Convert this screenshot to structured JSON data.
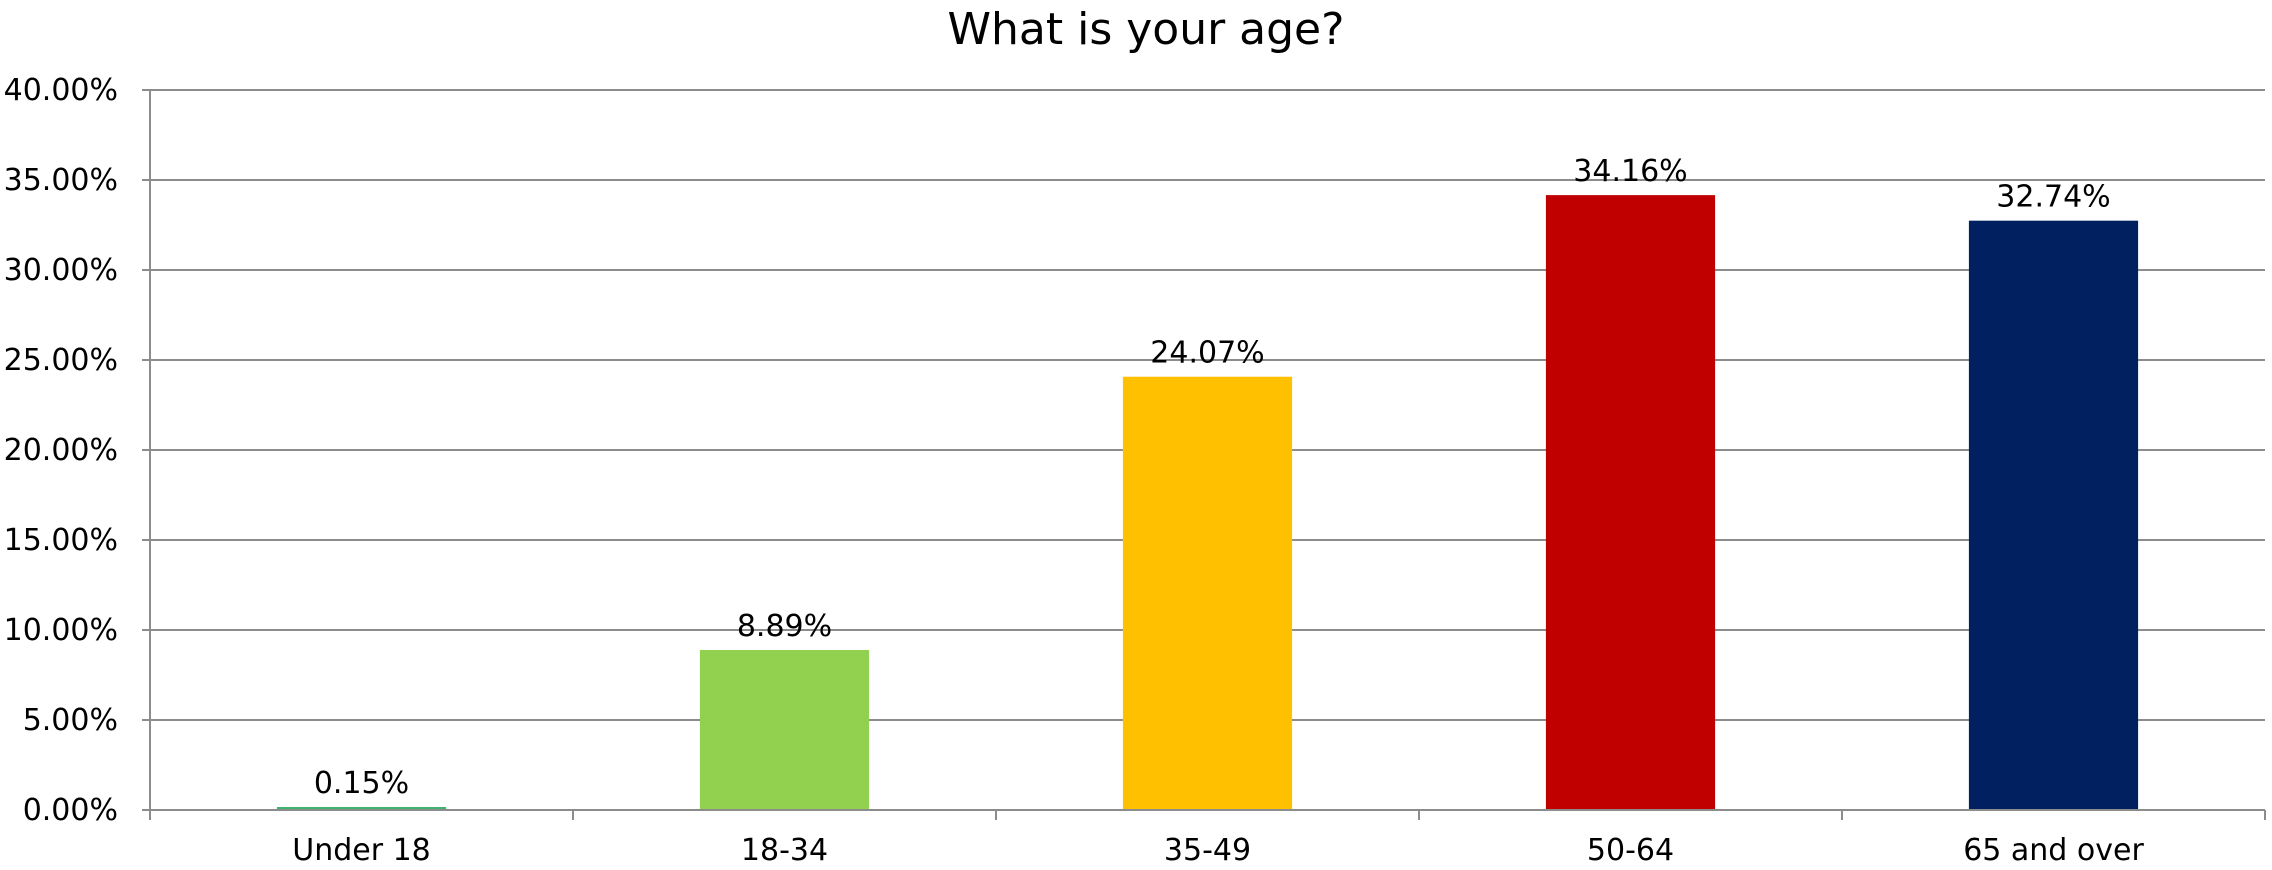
{
  "chart_data": {
    "type": "bar",
    "title": "What is your age?",
    "xlabel": "",
    "ylabel": "",
    "categories": [
      "Under 18",
      "18-34",
      "35-49",
      "50-64",
      "65 and over"
    ],
    "values": [
      0.15,
      8.89,
      24.07,
      34.16,
      32.74
    ],
    "data_labels": [
      "0.15%",
      "8.89%",
      "24.07%",
      "34.16%",
      "32.74%"
    ],
    "colors": [
      "#3cb371",
      "#92d050",
      "#ffc000",
      "#c00000",
      "#002060"
    ],
    "ylim": [
      0,
      40
    ],
    "y_ticks": [
      0,
      5,
      10,
      15,
      20,
      25,
      30,
      35,
      40
    ],
    "y_tick_labels": [
      "0.00%",
      "5.00%",
      "10.00%",
      "15.00%",
      "20.00%",
      "25.00%",
      "30.00%",
      "35.00%",
      "40.00%"
    ],
    "grid": true,
    "legend": "none"
  }
}
